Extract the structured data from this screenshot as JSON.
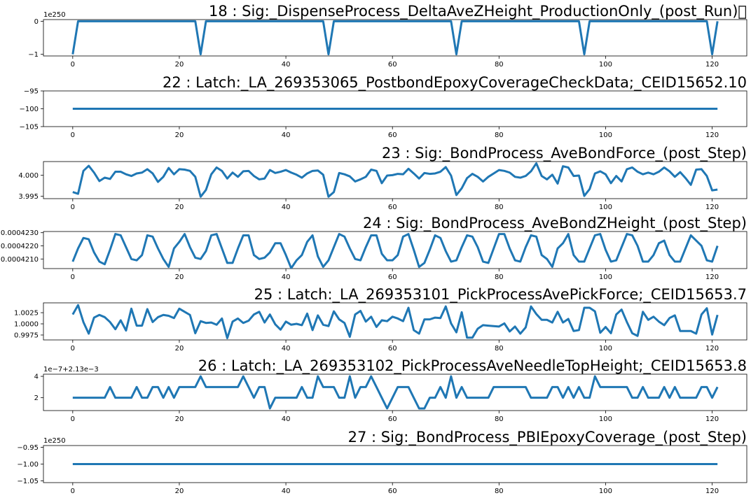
{
  "chart_data": [
    {
      "type": "line",
      "title": "18 : Sig:_DispenseProcess_DeltaAveZHeight_ProductionOnly_(post_Run)\u0000",
      "offset_text": "1e250",
      "xlim": [
        -5.5,
        126.5
      ],
      "ylim": [
        -1.05,
        0.05
      ],
      "x_ticks": [
        0,
        20,
        40,
        60,
        80,
        100,
        120
      ],
      "x_tick_labels": [
        "0",
        "20",
        "40",
        "60",
        "80",
        "100",
        "120"
      ],
      "y_ticks": [
        -1,
        0
      ],
      "y_tick_labels": [
        "−1",
        "0"
      ],
      "color": "#1f77b4",
      "x": [
        0,
        1,
        23,
        24,
        25,
        47,
        48,
        49,
        71,
        72,
        73,
        95,
        96,
        97,
        119,
        120,
        121
      ],
      "y": [
        -1,
        0,
        0,
        -1,
        0,
        0,
        -1,
        0,
        0,
        -1,
        0,
        0,
        -1,
        0,
        0,
        -1,
        0
      ]
    },
    {
      "type": "line",
      "title": "22 : Latch:_LA_269353065_PostbondEpoxyCoverageCheckData;_CEID15652.10",
      "xlim": [
        -5.5,
        126.5
      ],
      "ylim": [
        -105,
        -95
      ],
      "x_ticks": [
        0,
        20,
        40,
        60,
        80,
        100,
        120
      ],
      "x_tick_labels": [
        "0",
        "20",
        "40",
        "60",
        "80",
        "100",
        "120"
      ],
      "y_ticks": [
        -105,
        -100,
        -95
      ],
      "y_tick_labels": [
        "−105",
        "−100",
        "−95"
      ],
      "color": "#1f77b4",
      "x": [
        0,
        121
      ],
      "y": [
        -100,
        -100
      ]
    },
    {
      "type": "line",
      "title": "23 : Sig:_BondProcess_AveBondForce_(post_Step)",
      "xlim": [
        -5.5,
        126.5
      ],
      "ylim": [
        3.99445,
        4.0032
      ],
      "x_ticks": [
        0,
        20,
        40,
        60,
        80,
        100,
        120
      ],
      "x_tick_labels": [
        "0",
        "20",
        "40",
        "60",
        "80",
        "100",
        "120"
      ],
      "y_ticks": [
        3.995,
        4.0
      ],
      "y_tick_labels": [
        "3.995",
        "4.000"
      ],
      "color": "#1f77b4",
      "x0": 0,
      "y": [
        3.996,
        3.9956,
        4.001,
        4.0022,
        4.0006,
        3.9986,
        3.9994,
        3.9991,
        4.0008,
        4.0008,
        4.0002,
        3.9998,
        4.0004,
        4.0006,
        4.0014,
        4.0004,
        3.9984,
        3.9996,
        4.0017,
        4.0002,
        4.0014,
        4.0013,
        4.001,
        3.9996,
        3.9949,
        3.9965,
        4.0002,
        4.0018,
        4.001,
        3.9992,
        4.0006,
        3.9996,
        4.0009,
        4.001,
        3.9998,
        3.999,
        3.9992,
        4.0012,
        4.0005,
        4.0008,
        4.0012,
        4.0006,
        4.0001,
        3.9994,
        4.0004,
        4.001,
        4.0011,
        4.0001,
        3.9949,
        3.996,
        4.0005,
        4.0002,
        3.9997,
        3.9985,
        3.999,
        3.9996,
        4.0013,
        4.001,
        3.9981,
        3.9999,
        4.0,
        4.0003,
        4.0002,
        4.0015,
        4.0004,
        3.9992,
        4.0005,
        4.0003,
        4.0004,
        4.0008,
        4.0019,
        3.9999,
        3.9953,
        3.9969,
        3.9993,
        4.0003,
        3.9996,
        3.9985,
        3.9996,
        4.0004,
        4.0012,
        4.001,
        4.0006,
        3.9996,
        3.9994,
        3.9998,
        4.0009,
        4.0028,
        3.9998,
        3.999,
        4.0001,
        3.998,
        4.0021,
        4.0018,
        3.9998,
        3.9999,
        3.9951,
        3.9967,
        4.0004,
        4.0009,
        4.0002,
        3.9981,
        3.9998,
        3.9985,
        4.0014,
        4.0018,
        4.0008,
        4.0002,
        4.0006,
        4.0002,
        4.0008,
        4.0018,
        4.0009,
        3.9996,
        4.0007,
        3.9993,
        3.9977,
        4.0013,
        4.0014,
        3.9998,
        3.9964,
        3.9966
      ]
    },
    {
      "type": "line",
      "title": "24 : Sig:_BondProcess_AveBondZHeight_(post_Step)",
      "xlim": [
        -5.5,
        126.5
      ],
      "ylim": [
        0.00042027,
        0.00042309
      ],
      "x_ticks": [
        0,
        20,
        40,
        60,
        80,
        100,
        120
      ],
      "x_tick_labels": [
        "0",
        "20",
        "40",
        "60",
        "80",
        "100",
        "120"
      ],
      "y_ticks": [
        0.000421,
        0.000422,
        0.000423
      ],
      "y_tick_labels": [
        "0.0004210",
        "0.0004220",
        "0.0004230"
      ],
      "color": "#1f77b4",
      "x0": 0,
      "y": [
        0.0004208,
        0.0004218,
        0.0004226,
        0.0004225,
        0.0004215,
        0.0004208,
        0.0004206,
        0.0004217,
        0.0004229,
        0.0004228,
        0.0004219,
        0.000421,
        0.0004209,
        0.0004213,
        0.0004228,
        0.0004227,
        0.0004218,
        0.000421,
        0.0004204,
        0.0004218,
        0.0004223,
        0.0004229,
        0.0004219,
        0.0004211,
        0.000421,
        0.0004216,
        0.0004228,
        0.0004229,
        0.0004218,
        0.0004207,
        0.0004207,
        0.0004218,
        0.0004228,
        0.0004228,
        0.0004213,
        0.000421,
        0.0004211,
        0.0004215,
        0.0004222,
        0.0004222,
        0.0004213,
        0.0004203,
        0.0004209,
        0.0004213,
        0.0004223,
        0.0004228,
        0.0004212,
        0.0004204,
        0.0004209,
        0.0004219,
        0.0004229,
        0.0004227,
        0.0004218,
        0.000421,
        0.0004209,
        0.0004219,
        0.0004228,
        0.0004228,
        0.0004214,
        0.0004209,
        0.0004209,
        0.0004213,
        0.0004227,
        0.0004229,
        0.0004217,
        0.0004204,
        0.0004207,
        0.0004217,
        0.0004228,
        0.0004226,
        0.0004216,
        0.0004208,
        0.0004209,
        0.0004219,
        0.0004228,
        0.0004227,
        0.0004219,
        0.0004208,
        0.0004207,
        0.0004218,
        0.0004229,
        0.0004229,
        0.0004218,
        0.0004209,
        0.0004208,
        0.0004219,
        0.0004228,
        0.0004227,
        0.0004213,
        0.000421,
        0.0004204,
        0.0004218,
        0.0004222,
        0.0004229,
        0.0004213,
        0.0004208,
        0.0004208,
        0.0004218,
        0.0004228,
        0.0004229,
        0.0004217,
        0.0004208,
        0.0004209,
        0.0004219,
        0.0004229,
        0.0004228,
        0.000422,
        0.0004208,
        0.0004208,
        0.0004213,
        0.0004222,
        0.0004224,
        0.0004213,
        0.0004208,
        0.0004208,
        0.0004218,
        0.0004228,
        0.0004224,
        0.000422,
        0.0004209,
        0.0004208,
        0.000422
      ]
    },
    {
      "type": "line",
      "title": "25 : Latch:_LA_269353101_PickProcessAvePickForce;_CEID15653.7",
      "xlim": [
        -5.5,
        126.5
      ],
      "ylim": [
        0.9964,
        1.0047
      ],
      "x_ticks": [
        0,
        20,
        40,
        60,
        80,
        100,
        120
      ],
      "x_tick_labels": [
        "0",
        "20",
        "40",
        "60",
        "80",
        "100",
        "120"
      ],
      "y_ticks": [
        0.9975,
        1.0,
        1.0025
      ],
      "y_tick_labels": [
        "0.9975",
        "1.0000",
        "1.0025"
      ],
      "color": "#1f77b4",
      "x0": 0,
      "y": [
        1.0021,
        1.0042,
        1.0004,
        0.9978,
        1.0014,
        1.002,
        1.0015,
        1.0004,
        0.9988,
        1.0008,
        0.9985,
        1.0034,
        0.9996,
        0.9996,
        1.0033,
        1.0004,
        1.0015,
        1.002,
        1.0018,
        1.0013,
        1.0034,
        1.0027,
        1.002,
        0.9979,
        1.0006,
        1.0002,
        1.0003,
        0.9998,
        1.0012,
        0.9968,
        1.0005,
        1.0012,
        1.0002,
        1.0007,
        1.0021,
        1.0027,
        1.0003,
        1.0021,
        0.9999,
        0.9987,
        1.0005,
        0.9998,
        1.0,
        0.9997,
        1.0023,
        0.9986,
        1.0019,
        0.9998,
        0.9995,
        1.0028,
        1.001,
        1.0002,
        0.9971,
        1.0021,
        1.0029,
        1.0005,
        1.0016,
        0.9993,
        1.0008,
        1.0006,
        1.0016,
        1.0012,
        1.0006,
        1.0036,
        0.9986,
        0.9978,
        1.001,
        1.001,
        1.0014,
        1.0013,
        1.0039,
        1.0001,
        0.9981,
        1.0026,
        0.9969,
        0.9969,
        0.9989,
        0.9997,
        0.9996,
        0.9995,
        0.9994,
        1.0001,
        0.9983,
        0.9994,
        0.9978,
        0.9992,
        1.0039,
        1.0022,
        1.0009,
        1.0009,
        1.0003,
        1.0027,
        1.0003,
        1.0011,
        0.9984,
        0.9986,
        1.0036,
        1.0036,
        1.0028,
        0.998,
        0.9993,
        0.9979,
        1.0021,
        1.0032,
        1.0004,
        0.9979,
        0.9973,
        1.0027,
        1.0009,
        1.0016,
        1.0005,
        0.9997,
        1.0013,
        1.0019,
        0.9984,
        0.9984,
        0.9984,
        0.9978,
        1.0021,
        1.0035,
        0.9976,
        1.002
      ]
    },
    {
      "type": "line",
      "title": "26 : Latch:_LA_269353102_PickProcessAveNeedleTopHeight;_CEID15653.8",
      "offset_text": "1e−7+2.13e−3",
      "xlim": [
        -5.5,
        126.5
      ],
      "ylim": [
        0.8,
        4.2
      ],
      "x_ticks": [
        0,
        20,
        40,
        60,
        80,
        100,
        120
      ],
      "x_tick_labels": [
        "0",
        "20",
        "40",
        "60",
        "80",
        "100",
        "120"
      ],
      "y_ticks": [
        2,
        4
      ],
      "y_tick_labels": [
        "2",
        "4"
      ],
      "color": "#1f77b4",
      "x0": 0,
      "y": [
        2,
        2,
        2,
        2,
        2,
        2,
        2,
        3,
        2,
        2,
        2,
        2,
        3,
        2,
        2,
        3,
        3,
        2,
        3,
        2,
        3,
        3,
        3,
        3,
        4,
        3,
        3,
        3,
        3,
        3,
        3,
        3,
        4,
        3,
        2,
        3,
        3,
        1,
        2,
        2,
        2,
        2,
        2,
        3,
        2,
        2,
        4,
        3,
        3,
        3,
        2,
        2,
        4,
        2,
        3,
        3,
        4,
        3,
        2,
        1,
        2,
        3,
        3,
        3,
        2,
        1,
        1,
        2,
        2,
        3,
        2,
        4,
        2,
        3,
        2,
        2,
        2,
        2,
        2,
        3,
        3,
        3,
        3,
        3,
        3,
        3,
        2,
        2,
        2,
        2,
        3,
        3,
        2,
        3,
        2,
        3,
        2,
        2,
        4,
        3,
        3,
        3,
        3,
        3,
        3,
        2,
        2,
        3,
        2,
        2,
        2,
        3,
        2,
        3,
        2,
        2,
        2,
        2,
        3,
        3,
        2,
        3
      ]
    },
    {
      "type": "line",
      "title": "27 : Sig:_BondProcess_PBIEpoxyCoverage_(post_Step)",
      "offset_text": "1e250",
      "xlim": [
        -5.5,
        126.5
      ],
      "ylim": [
        -1.055,
        -0.945
      ],
      "x_ticks": [
        0,
        20,
        40,
        60,
        80,
        100,
        120
      ],
      "x_tick_labels": [
        "0",
        "20",
        "40",
        "60",
        "80",
        "100",
        "120"
      ],
      "y_ticks": [
        -1.05,
        -1.0,
        -0.95
      ],
      "y_tick_labels": [
        "−1.05",
        "−1.00",
        "−0.95"
      ],
      "color": "#1f77b4",
      "x": [
        0,
        121
      ],
      "y": [
        -1,
        -1
      ]
    }
  ]
}
